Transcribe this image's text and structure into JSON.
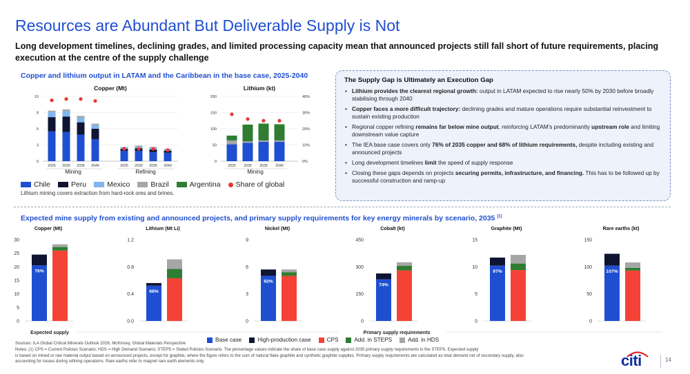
{
  "page": {
    "title": "Resources are Abundant But Deliverable Supply is Not",
    "subtitle": "Long development timelines, declining grades, and limited processing capacity mean that announced projects still fall short of future requirements, placing execution at the centre of the supply challenge",
    "section1_heading": "Copper and lithium output in LATAM and the Caribbean in the base case, 2025-2040",
    "section2_heading": "Expected mine supply from existing and announced projects, and primary supply requirements for key energy minerals by scenario, 2035",
    "section2_sup": "(1)",
    "lithium_note": "Lithium mining covers extraction from hard-rock ores and brines.",
    "page_number": "14",
    "logo_text": "citi",
    "sources": "Sources: ILA Global Critical Minerals Outlook 2026, McKinsey, Global Materials Perspective",
    "notes_1": "Notes: (1) CPS = Current Policies Scenario; HDS = High Demand Scenario; STEPS = Stated Policies Scenario. The percentage values indicate the share of base case supply against 2035 primary supply requirements in the STEPS. Expected supply",
    "notes_2": "is based on mined or raw material output based on announced projects, except for graphite, where the figure refers to the sum of natural flake graphite and synthetic graphite supplies. Primary supply requirements are calculated as total demand net of secondary supply, also",
    "notes_3": "accounting for losses during refining operations. Rare earths refer to magnet rare earth elements only."
  },
  "supply_gap": {
    "title": "The Supply Gap is Ultimately an Execution Gap",
    "bullets": [
      [
        "Lithium provides the clearest regional growth:",
        " output in LATAM expected to rise nearly 50% by 2030 before broadly stabilising through 2040",
        ""
      ],
      [
        "Copper faces a more difficult trajectory:",
        " declining grades and mature operations require substantial reinvestment to sustain existing production",
        ""
      ],
      [
        "",
        "Regional copper refining ",
        "remains far below mine output",
        ", reinforcing LATAM's predominantly ",
        "upstream role",
        " and limiting downstream value capture"
      ],
      [
        "",
        "The IEA base case covers only ",
        "76% of 2035 copper and 68% of lithium requirements,",
        " despite including existing and announced projects"
      ],
      [
        "",
        "Long development timelines ",
        "limit",
        " the speed of supply response"
      ],
      [
        "",
        "Closing these gaps depends on projects ",
        "securing permits, infrastructure, and financing.",
        " This has to be followed up by successful construction and ramp-up"
      ]
    ]
  },
  "legend_top": [
    {
      "label": "Chile",
      "color": "#1f4fd1"
    },
    {
      "label": "Peru",
      "color": "#0f1433"
    },
    {
      "label": "Mexico",
      "color": "#7fb6f0"
    },
    {
      "label": "Brazil",
      "color": "#a6a6a6"
    },
    {
      "label": "Argentina",
      "color": "#2e7d32"
    },
    {
      "label": "Share of global",
      "color": "#e53935",
      "marker": "dot"
    }
  ],
  "legend_bottom": [
    {
      "label": "Base case",
      "color": "#1f4fd1"
    },
    {
      "label": "High-production case",
      "color": "#0f1433"
    },
    {
      "label": "CPS",
      "color": "#f44336"
    },
    {
      "label": "Add. in STEPS",
      "color": "#2e7d32"
    },
    {
      "label": "Add. in HDS",
      "color": "#a6a6a6"
    }
  ],
  "chart_data": [
    {
      "id": "copper-latam",
      "type": "bar",
      "title": "Copper (Mt)",
      "categories": [
        "2025",
        "2030",
        "2035",
        "2040",
        "2025",
        "2030",
        "2035",
        "2040"
      ],
      "groups": [
        "Mining",
        "Refining"
      ],
      "ylim": [
        0,
        10
      ],
      "yticks": [
        "0",
        "3",
        "5",
        "8",
        "10"
      ],
      "yticks_values": [
        0,
        2.5,
        5,
        7.5,
        10
      ],
      "series": [
        {
          "name": "Chile",
          "color": "#1f4fd1",
          "values": [
            4.6,
            4.5,
            4.1,
            3.4,
            1.6,
            1.6,
            1.4,
            1.3
          ]
        },
        {
          "name": "Peru",
          "color": "#0f1433",
          "values": [
            2.2,
            2.4,
            1.9,
            1.6,
            0.3,
            0.4,
            0.4,
            0.3
          ]
        },
        {
          "name": "Mexico",
          "color": "#7fb6f0",
          "values": [
            0.8,
            0.8,
            0.7,
            0.6,
            0.2,
            0.2,
            0.2,
            0.2
          ]
        },
        {
          "name": "Brazil",
          "color": "#a6a6a6",
          "values": [
            0.2,
            0.3,
            0.3,
            0.2,
            0.1,
            0.2,
            0.2,
            0.1
          ]
        }
      ],
      "share_of_global": [
        9.4,
        9.6,
        9.6,
        9.3,
        1.9,
        1.9,
        1.9,
        1.7
      ]
    },
    {
      "id": "lithium-latam",
      "type": "bar",
      "title": "Lithium (kt)",
      "categories": [
        "2025",
        "2030",
        "2035",
        "2040"
      ],
      "groups": [
        "Mining"
      ],
      "ylim": [
        0,
        200
      ],
      "yticks": [
        "0",
        "50",
        "100",
        "150",
        "200"
      ],
      "yticks_values": [
        0,
        50,
        100,
        150,
        200
      ],
      "y2lim": [
        0,
        40
      ],
      "y2ticks": [
        "0%",
        "10%",
        "20%",
        "30%",
        "40%"
      ],
      "y2ticks_values": [
        0,
        10,
        20,
        30,
        40
      ],
      "series": [
        {
          "name": "Chile",
          "color": "#1f4fd1",
          "values": [
            52,
            57,
            60,
            60
          ]
        },
        {
          "name": "Peru",
          "color": "#0f1433",
          "values": [
            0,
            0,
            0,
            0
          ]
        },
        {
          "name": "Brazil",
          "color": "#a6a6a6",
          "values": [
            12,
            4,
            4,
            4
          ]
        },
        {
          "name": "Argentina",
          "color": "#2e7d32",
          "values": [
            15,
            52,
            52,
            50
          ]
        }
      ],
      "share_of_global": [
        29,
        26,
        25,
        25
      ]
    },
    {
      "id": "copper-2035",
      "type": "bar",
      "title": "Copper (Mt)",
      "ylim": [
        0,
        30
      ],
      "yticks": [
        "0",
        "5",
        "10",
        "15",
        "20",
        "25",
        "30"
      ],
      "yticks_values": [
        0,
        5,
        10,
        15,
        20,
        25,
        30
      ],
      "expected": {
        "base": 20.5,
        "high": 24.5,
        "label": "76%"
      },
      "requirements": {
        "cps": 26,
        "steps_add": 1.3,
        "hds_add": 1.0
      }
    },
    {
      "id": "lithium-2035",
      "type": "bar",
      "title": "Lithium (Mt Li)",
      "ylim": [
        0,
        1.2
      ],
      "yticks": [
        "0.0",
        "0.4",
        "0.8",
        "1.2"
      ],
      "yticks_values": [
        0,
        0.4,
        0.8,
        1.2
      ],
      "expected": {
        "base": 0.52,
        "high": 0.56,
        "label": "68%"
      },
      "requirements": {
        "cps": 0.63,
        "steps_add": 0.14,
        "hds_add": 0.14
      }
    },
    {
      "id": "nickel-2035",
      "type": "bar",
      "title": "Nickel (Mt)",
      "ylim": [
        0,
        9
      ],
      "yticks": [
        "0",
        "3",
        "6",
        "9"
      ],
      "yticks_values": [
        0,
        3,
        6,
        9
      ],
      "expected": {
        "base": 5.0,
        "high": 5.7,
        "label": "92%"
      },
      "requirements": {
        "cps": 5.0,
        "steps_add": 0.4,
        "hds_add": 0.3
      }
    },
    {
      "id": "cobalt-2035",
      "type": "bar",
      "title": "Cobalt (kt)",
      "ylim": [
        0,
        450
      ],
      "yticks": [
        "0",
        "150",
        "300",
        "450"
      ],
      "yticks_values": [
        0,
        150,
        300,
        450
      ],
      "expected": {
        "base": 230,
        "high": 263,
        "label": "74%"
      },
      "requirements": {
        "cps": 280,
        "steps_add": 25,
        "hds_add": 20
      }
    },
    {
      "id": "graphite-2035",
      "type": "bar",
      "title": "Graphite (Mt)",
      "ylim": [
        0,
        15
      ],
      "yticks": [
        "0",
        "5",
        "10",
        "15"
      ],
      "yticks_values": [
        0,
        5,
        10,
        15
      ],
      "expected": {
        "base": 10.2,
        "high": 11.7,
        "label": "97%"
      },
      "requirements": {
        "cps": 9.4,
        "steps_add": 1.2,
        "hds_add": 1.6
      }
    },
    {
      "id": "rare-earths-2035",
      "type": "bar",
      "title": "Rare earths (kt)",
      "ylim": [
        0,
        150
      ],
      "yticks": [
        "0",
        "50",
        "100",
        "150"
      ],
      "yticks_values": [
        0,
        50,
        100,
        150
      ],
      "expected": {
        "base": 102,
        "high": 124,
        "label": "107%"
      },
      "requirements": {
        "cps": 93,
        "steps_add": 5,
        "hds_add": 10
      }
    }
  ],
  "axis_labels": {
    "mining": "Mining",
    "refining": "Refining",
    "expected_supply": "Expected supply",
    "primary_supply": "Primary supply requirements"
  }
}
